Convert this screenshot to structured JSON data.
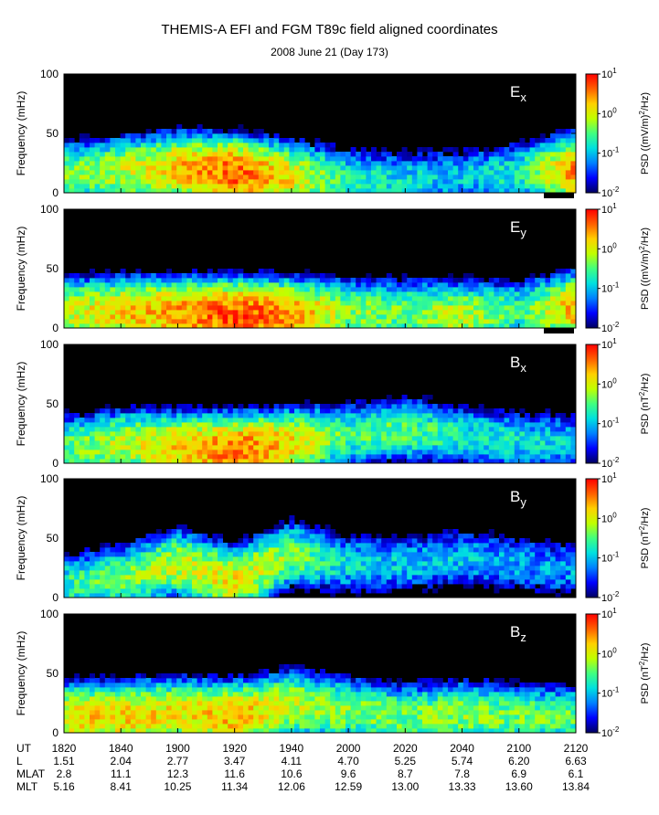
{
  "title": "THEMIS-A EFI and FGM T89c field aligned coordinates",
  "subtitle": "2008 June 21 (Day 173)",
  "colors": {
    "colormap": [
      "#000060",
      "#0000ff",
      "#0080ff",
      "#00e0e0",
      "#40ff80",
      "#c0ff00",
      "#ffd000",
      "#ff6000",
      "#ff0000"
    ],
    "background_no_data": "#000000",
    "bad_data_bar": "#000000"
  },
  "chart_data": {
    "type": "heatmap",
    "x_ticks": [
      "1820",
      "1840",
      "1900",
      "1920",
      "1940",
      "2000",
      "2020",
      "2040",
      "2100",
      "2120"
    ],
    "ylabel": "Frequency (mHz)",
    "ylim": [
      0,
      100
    ],
    "y_ticks": [
      "0",
      "50",
      "100"
    ],
    "colorbar": {
      "scale": "log",
      "range": [
        0.01,
        10
      ],
      "tick_base": "10",
      "tick_exponents": [
        "1",
        "0",
        "-1",
        "-2"
      ]
    },
    "panels": [
      {
        "component_base": "E",
        "component_sub": "x",
        "psd_label_prefix": "PSD ((mV/m)",
        "psd_label_exp": "2",
        "psd_label_suffix": "/Hz)",
        "peak_frequency_mHz": [
          18,
          20,
          22,
          18,
          15,
          12,
          12,
          15,
          18,
          20
        ],
        "peak_log_psd": [
          -0.3,
          0.0,
          0.4,
          0.8,
          0.2,
          -0.6,
          -0.8,
          -0.9,
          -0.6,
          0.6
        ]
      },
      {
        "component_base": "E",
        "component_sub": "y",
        "psd_label_prefix": "PSD ((mV/m)",
        "psd_label_exp": "2",
        "psd_label_suffix": "/Hz)",
        "peak_frequency_mHz": [
          15,
          15,
          14,
          12,
          12,
          15,
          15,
          12,
          15,
          18
        ],
        "peak_log_psd": [
          0.0,
          0.3,
          0.5,
          0.8,
          0.6,
          -0.2,
          -0.3,
          0.0,
          -0.5,
          0.5
        ]
      },
      {
        "component_base": "B",
        "component_sub": "x",
        "psd_label_prefix": "PSD (nT",
        "psd_label_exp": "2",
        "psd_label_suffix": "/Hz)",
        "peak_frequency_mHz": [
          15,
          18,
          15,
          12,
          18,
          25,
          30,
          25,
          20,
          20
        ],
        "peak_log_psd": [
          -0.4,
          0.0,
          0.3,
          0.7,
          0.3,
          -0.4,
          -0.3,
          -0.6,
          -0.7,
          -0.9
        ]
      },
      {
        "component_base": "B",
        "component_sub": "y",
        "psd_label_prefix": "PSD (nT",
        "psd_label_exp": "2",
        "psd_label_suffix": "/Hz)",
        "peak_frequency_mHz": [
          12,
          18,
          30,
          15,
          38,
          30,
          30,
          35,
          30,
          25
        ],
        "peak_log_psd": [
          -0.6,
          -0.3,
          0.1,
          0.2,
          -0.1,
          -0.7,
          -0.8,
          -0.8,
          -0.9,
          -1.0
        ]
      },
      {
        "component_base": "B",
        "component_sub": "z",
        "psd_label_prefix": "PSD (nT",
        "psd_label_exp": "2",
        "psd_label_suffix": "/Hz)",
        "peak_frequency_mHz": [
          15,
          15,
          18,
          15,
          25,
          20,
          15,
          18,
          15,
          15
        ],
        "peak_log_psd": [
          0.2,
          0.3,
          0.2,
          0.4,
          0.1,
          -0.2,
          -0.3,
          -0.2,
          -0.3,
          -0.4
        ]
      }
    ]
  },
  "ephemeris": {
    "rows": [
      {
        "label": "UT",
        "values": [
          "1820",
          "1840",
          "1900",
          "1920",
          "1940",
          "2000",
          "2020",
          "2040",
          "2100",
          "2120"
        ]
      },
      {
        "label": "L",
        "values": [
          "1.51",
          "2.04",
          "2.77",
          "3.47",
          "4.11",
          "4.70",
          "5.25",
          "5.74",
          "6.20",
          "6.63"
        ]
      },
      {
        "label": "MLAT",
        "values": [
          "2.8",
          "11.1",
          "12.3",
          "11.6",
          "10.6",
          "9.6",
          "8.7",
          "7.8",
          "6.9",
          "6.1"
        ]
      },
      {
        "label": "MLT",
        "values": [
          "5.16",
          "8.41",
          "10.25",
          "11.34",
          "12.06",
          "12.59",
          "13.00",
          "13.33",
          "13.60",
          "13.84"
        ]
      }
    ]
  }
}
